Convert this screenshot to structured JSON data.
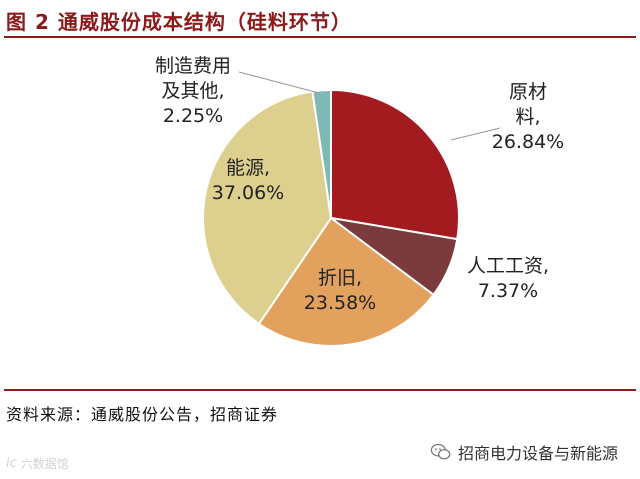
{
  "figure": {
    "title": "图 2  通威股份成本结构（硅料环节）",
    "source": "资料来源：通威股份公告，招商证券"
  },
  "watermark": {
    "wechat_name": "招商电力设备与新能源",
    "wechat_icon": "wechat-icon",
    "corner_logo": "ic",
    "corner_text": "六数据馆"
  },
  "chart_data": {
    "type": "pie",
    "title": "",
    "slices": [
      {
        "label_lines": [
          "原材",
          "料,"
        ],
        "value_text": "26.84%",
        "value": 26.84,
        "color": "#a31a1f"
      },
      {
        "label_lines": [
          "人工工资,"
        ],
        "value_text": "7.37%",
        "value": 7.37,
        "color": "#7b3a3c"
      },
      {
        "label_lines": [
          "折旧,"
        ],
        "value_text": "23.58%",
        "value": 23.58,
        "color": "#e3a15e"
      },
      {
        "label_lines": [
          "能源,"
        ],
        "value_text": "37.06%",
        "value": 37.06,
        "color": "#ddd08f"
      },
      {
        "label_lines": [
          "制造费用",
          "及其他,"
        ],
        "value_text": "2.25%",
        "value": 2.25,
        "color": "#7fb9b4"
      }
    ]
  }
}
